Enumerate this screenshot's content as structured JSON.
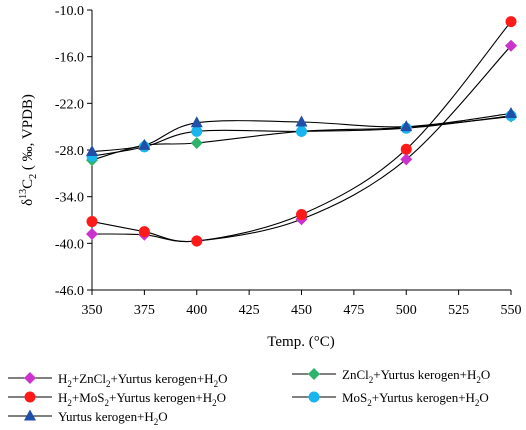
{
  "chart_data": {
    "type": "line",
    "xlabel": "Temp. (°C)",
    "ylabel_parts": [
      "δ",
      "13",
      "C",
      "2",
      " ( ‰, VPDB)"
    ],
    "xlim": [
      350,
      550
    ],
    "ylim": [
      -46,
      -10
    ],
    "x_ticks": [
      "350",
      "375",
      "400",
      "425",
      "450",
      "475",
      "500",
      "525",
      "550"
    ],
    "y_ticks": [
      "-10.0",
      "-16.0",
      "-22.0",
      "-28.0",
      "-34.0",
      "-40.0",
      "-46.0"
    ],
    "grid": false,
    "legend_position": "bottom",
    "series": [
      {
        "name": "H2+ZnCl2+Yurtus kerogen+H2O",
        "label_parts": [
          [
            "H",
            false
          ],
          [
            "2",
            true
          ],
          [
            "+ZnCl",
            false
          ],
          [
            "2",
            true
          ],
          [
            "+Yurtus kerogen+H",
            false
          ],
          [
            "2",
            true
          ],
          [
            "O",
            false
          ]
        ],
        "marker": "diamond",
        "color": "#cc33cc",
        "x": [
          350,
          375,
          400,
          450,
          500,
          550
        ],
        "y": [
          -38.8,
          -38.9,
          -39.7,
          -36.9,
          -29.2,
          -14.6
        ]
      },
      {
        "name": "ZnCl2+Yurtus kerogen+H2O",
        "label_parts": [
          [
            "ZnCl",
            false
          ],
          [
            "2",
            true
          ],
          [
            "+Yurtus kerogen+H",
            false
          ],
          [
            "2",
            true
          ],
          [
            "O",
            false
          ]
        ],
        "marker": "diamond",
        "color": "#2db36b",
        "x": [
          350,
          375,
          400,
          450,
          500,
          550
        ],
        "y": [
          -29.3,
          -27.4,
          -27.1,
          -25.6,
          -25.1,
          -23.7
        ]
      },
      {
        "name": "H2+MoS2+Yurtus kerogen+H2O",
        "label_parts": [
          [
            "H",
            false
          ],
          [
            "2",
            true
          ],
          [
            "+MoS",
            false
          ],
          [
            "2",
            true
          ],
          [
            "+Yurtus kerogen+H",
            false
          ],
          [
            "2",
            true
          ],
          [
            "O",
            false
          ]
        ],
        "marker": "circle",
        "color": "#ff1a1a",
        "x": [
          350,
          375,
          400,
          450,
          500,
          550
        ],
        "y": [
          -37.2,
          -38.5,
          -39.7,
          -36.3,
          -27.9,
          -11.5
        ]
      },
      {
        "name": "MoS2+Yurtus kerogen+H2O",
        "label_parts": [
          [
            "MoS",
            false
          ],
          [
            "2",
            true
          ],
          [
            "+Yurtus kerogen+H",
            false
          ],
          [
            "2",
            true
          ],
          [
            "O",
            false
          ]
        ],
        "marker": "circle",
        "color": "#19b5ee",
        "x": [
          350,
          375,
          400,
          450,
          500,
          550
        ],
        "y": [
          -28.8,
          -27.6,
          -25.6,
          -25.6,
          -25.2,
          -23.6
        ]
      },
      {
        "name": "Yurtus kerogen+H2O",
        "label_parts": [
          [
            "Yurtus kerogen+H",
            false
          ],
          [
            "2",
            true
          ],
          [
            "O",
            false
          ]
        ],
        "marker": "triangle",
        "color": "#1f4fa8",
        "x": [
          350,
          375,
          400,
          450,
          500,
          550
        ],
        "y": [
          -28.2,
          -27.4,
          -24.5,
          -24.4,
          -25.0,
          -23.3
        ]
      }
    ]
  }
}
